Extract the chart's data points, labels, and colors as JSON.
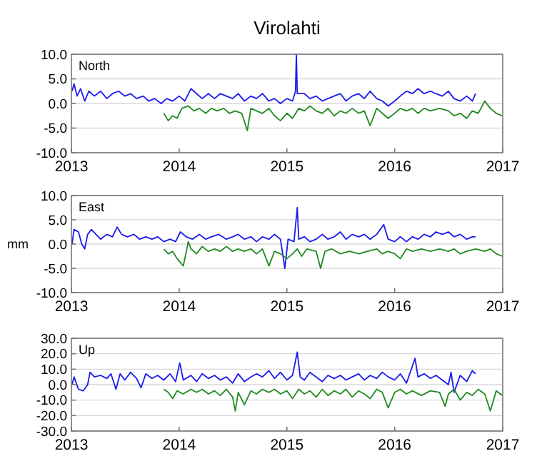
{
  "chart_data": [
    {
      "type": "line",
      "title": "Virolahti",
      "annotations": [
        "North"
      ],
      "xlim": [
        "2013",
        "2017"
      ],
      "xticks": [
        "2013",
        "2014",
        "2015",
        "2016",
        "2017"
      ],
      "ylim": [
        -10,
        10
      ],
      "yticks": [
        {
          "value": -10,
          "label": "-10.0"
        },
        {
          "value": -5,
          "label": "-5.0"
        },
        {
          "value": 0,
          "label": "0.0"
        },
        {
          "value": 5,
          "label": "5.0"
        },
        {
          "value": 10,
          "label": "10.0"
        }
      ],
      "grid": "y",
      "series": [
        {
          "color": "#1a1aee",
          "x": [
            "2013-01-03",
            "2013-01-10",
            "2013-01-20",
            "2013-02-01",
            "2013-02-15",
            "2013-03-01",
            "2013-03-20",
            "2013-04-10",
            "2013-05-01",
            "2013-05-20",
            "2013-06-10",
            "2013-07-01",
            "2013-07-20",
            "2013-08-10",
            "2013-09-01",
            "2013-09-20",
            "2013-10-10",
            "2013-11-01",
            "2013-11-20",
            "2013-12-10",
            "2014-01-01",
            "2014-01-20",
            "2014-02-10",
            "2014-03-01",
            "2014-03-20",
            "2014-04-10",
            "2014-05-01",
            "2014-05-20",
            "2014-06-10",
            "2014-07-01",
            "2014-07-20",
            "2014-08-10",
            "2014-09-01",
            "2014-09-20",
            "2014-10-10",
            "2014-11-01",
            "2014-11-20",
            "2014-12-10",
            "2015-01-01",
            "2015-01-20",
            "2015-01-30",
            "2015-02-02",
            "2015-02-05",
            "2015-03-01",
            "2015-03-20",
            "2015-04-10",
            "2015-05-01",
            "2015-05-20",
            "2015-06-10",
            "2015-07-01",
            "2015-07-20",
            "2015-08-10",
            "2015-09-01",
            "2015-09-20",
            "2015-10-10",
            "2015-11-01",
            "2015-11-20",
            "2015-12-10",
            "2016-01-01",
            "2016-01-20",
            "2016-02-10",
            "2016-03-01",
            "2016-03-20",
            "2016-04-10",
            "2016-05-01",
            "2016-05-20",
            "2016-06-10",
            "2016-07-01",
            "2016-07-20",
            "2016-08-10",
            "2016-09-01",
            "2016-09-20",
            "2016-10-01"
          ],
          "values": [
            2.5,
            4.0,
            1.5,
            3.0,
            0.5,
            2.5,
            1.5,
            2.5,
            1.0,
            2.0,
            2.5,
            1.5,
            2.0,
            1.0,
            1.5,
            0.5,
            1.0,
            0.0,
            1.0,
            0.5,
            1.5,
            0.5,
            3.0,
            2.0,
            1.0,
            2.0,
            1.0,
            2.0,
            1.5,
            1.0,
            2.0,
            0.5,
            1.5,
            1.0,
            2.0,
            0.5,
            1.0,
            0.0,
            1.0,
            0.5,
            2.5,
            10.0,
            2.0,
            2.0,
            1.0,
            1.5,
            0.5,
            1.0,
            1.5,
            2.0,
            0.5,
            1.5,
            2.0,
            1.0,
            2.5,
            1.0,
            0.5,
            -0.5,
            0.5,
            1.5,
            2.5,
            2.0,
            3.0,
            2.0,
            2.5,
            2.0,
            1.5,
            2.5,
            1.0,
            0.5,
            1.5,
            0.5,
            2.0
          ]
        },
        {
          "color": "#1f8a1f",
          "x": [
            "2013-11-10",
            "2013-11-25",
            "2013-12-10",
            "2013-12-25",
            "2014-01-10",
            "2014-02-01",
            "2014-02-20",
            "2014-03-10",
            "2014-04-01",
            "2014-04-20",
            "2014-05-10",
            "2014-06-01",
            "2014-06-20",
            "2014-07-10",
            "2014-08-01",
            "2014-08-20",
            "2014-09-01",
            "2014-09-20",
            "2014-10-10",
            "2014-11-01",
            "2014-11-20",
            "2014-12-10",
            "2015-01-01",
            "2015-01-20",
            "2015-02-10",
            "2015-03-01",
            "2015-03-20",
            "2015-04-10",
            "2015-05-01",
            "2015-05-20",
            "2015-06-10",
            "2015-07-01",
            "2015-07-20",
            "2015-08-10",
            "2015-09-01",
            "2015-09-20",
            "2015-10-10",
            "2015-11-01",
            "2015-11-20",
            "2015-12-10",
            "2016-01-01",
            "2016-01-20",
            "2016-02-10",
            "2016-03-01",
            "2016-03-20",
            "2016-04-10",
            "2016-05-01",
            "2016-06-01",
            "2016-07-01",
            "2016-07-20",
            "2016-08-10",
            "2016-09-01",
            "2016-09-20",
            "2016-10-10",
            "2016-11-01",
            "2016-11-20",
            "2016-12-10",
            "2016-12-31"
          ],
          "values": [
            -2.0,
            -3.5,
            -2.5,
            -3.0,
            -1.0,
            -0.5,
            -1.5,
            -1.0,
            -2.0,
            -1.0,
            -1.5,
            -1.0,
            -2.0,
            -1.5,
            -2.0,
            -5.5,
            -1.0,
            -1.5,
            -2.0,
            -1.0,
            -2.5,
            -3.5,
            -2.0,
            -3.0,
            -1.0,
            -1.5,
            -0.5,
            -1.5,
            -2.0,
            -1.0,
            -2.5,
            -1.5,
            -2.0,
            -1.0,
            -2.0,
            -1.5,
            -4.5,
            -1.0,
            -2.0,
            -3.0,
            -2.0,
            -1.0,
            -1.5,
            -1.0,
            -2.0,
            -1.0,
            -1.5,
            -1.0,
            -1.5,
            -2.5,
            -2.0,
            -3.0,
            -1.5,
            -2.0,
            0.5,
            -1.0,
            -2.0,
            -2.5
          ]
        }
      ]
    },
    {
      "type": "line",
      "annotations": [
        "East"
      ],
      "ylabel": "mm",
      "xlim": [
        "2013",
        "2017"
      ],
      "xticks": [
        "2013",
        "2014",
        "2015",
        "2016",
        "2017"
      ],
      "ylim": [
        -10,
        10
      ],
      "yticks": [
        {
          "value": -10,
          "label": "-10.0"
        },
        {
          "value": -5,
          "label": "-5.0"
        },
        {
          "value": 0,
          "label": "0.0"
        },
        {
          "value": 5,
          "label": "5.0"
        },
        {
          "value": 10,
          "label": "10.0"
        }
      ],
      "grid": "y",
      "series": [
        {
          "color": "#1a1aee",
          "x": [
            "2013-01-03",
            "2013-01-10",
            "2013-01-25",
            "2013-02-05",
            "2013-02-15",
            "2013-02-25",
            "2013-03-10",
            "2013-03-25",
            "2013-04-10",
            "2013-05-01",
            "2013-05-20",
            "2013-06-05",
            "2013-06-20",
            "2013-07-10",
            "2013-08-01",
            "2013-08-20",
            "2013-09-10",
            "2013-10-01",
            "2013-10-20",
            "2013-11-10",
            "2013-12-01",
            "2013-12-20",
            "2014-01-05",
            "2014-01-25",
            "2014-02-15",
            "2014-03-10",
            "2014-04-01",
            "2014-04-20",
            "2014-05-15",
            "2014-06-10",
            "2014-07-01",
            "2014-07-20",
            "2014-08-10",
            "2014-09-01",
            "2014-09-20",
            "2014-10-10",
            "2014-11-01",
            "2014-11-20",
            "2014-12-10",
            "2014-12-25",
            "2015-01-05",
            "2015-01-25",
            "2015-02-05",
            "2015-02-10",
            "2015-03-01",
            "2015-03-20",
            "2015-04-10",
            "2015-05-01",
            "2015-05-20",
            "2015-06-10",
            "2015-07-01",
            "2015-07-20",
            "2015-08-10",
            "2015-09-01",
            "2015-09-20",
            "2015-10-10",
            "2015-11-01",
            "2015-11-25",
            "2015-12-10",
            "2016-01-01",
            "2016-01-20",
            "2016-02-10",
            "2016-03-01",
            "2016-03-20",
            "2016-04-10",
            "2016-05-01",
            "2016-05-20",
            "2016-06-10",
            "2016-07-01",
            "2016-07-20",
            "2016-08-10",
            "2016-09-01",
            "2016-09-20",
            "2016-10-01"
          ],
          "values": [
            0.0,
            3.0,
            2.5,
            0.0,
            -1.0,
            2.0,
            3.0,
            2.0,
            1.0,
            2.0,
            1.5,
            3.5,
            2.0,
            1.5,
            2.0,
            1.0,
            1.5,
            1.0,
            1.5,
            0.5,
            1.0,
            0.5,
            2.5,
            1.5,
            1.0,
            2.0,
            1.0,
            1.5,
            2.0,
            1.0,
            1.5,
            2.0,
            1.0,
            1.5,
            0.5,
            1.5,
            1.0,
            2.0,
            1.0,
            -5.0,
            1.0,
            0.5,
            7.5,
            1.0,
            1.5,
            0.5,
            1.0,
            2.0,
            1.0,
            1.5,
            2.5,
            1.0,
            2.0,
            1.5,
            2.0,
            1.0,
            2.0,
            4.0,
            1.0,
            0.5,
            1.5,
            0.5,
            1.5,
            1.0,
            2.0,
            1.5,
            2.5,
            2.0,
            2.5,
            1.5,
            2.0,
            1.0,
            1.5,
            1.5
          ]
        },
        {
          "color": "#1f8a1f",
          "x": [
            "2013-11-10",
            "2013-11-25",
            "2013-12-10",
            "2013-12-25",
            "2014-01-15",
            "2014-02-01",
            "2014-02-10",
            "2014-03-01",
            "2014-03-20",
            "2014-04-10",
            "2014-05-01",
            "2014-05-20",
            "2014-06-10",
            "2014-07-01",
            "2014-07-20",
            "2014-08-10",
            "2014-09-01",
            "2014-09-20",
            "2014-10-10",
            "2014-11-01",
            "2014-11-20",
            "2014-12-10",
            "2015-01-01",
            "2015-01-20",
            "2015-02-05",
            "2015-02-20",
            "2015-03-10",
            "2015-04-10",
            "2015-04-25",
            "2015-05-10",
            "2015-06-01",
            "2015-07-01",
            "2015-08-01",
            "2015-09-01",
            "2015-10-01",
            "2015-11-01",
            "2015-11-20",
            "2015-12-10",
            "2016-01-01",
            "2016-01-20",
            "2016-02-10",
            "2016-03-01",
            "2016-04-01",
            "2016-05-01",
            "2016-06-01",
            "2016-07-01",
            "2016-07-20",
            "2016-08-10",
            "2016-09-01",
            "2016-10-01",
            "2016-11-01",
            "2016-11-20",
            "2016-12-10",
            "2016-12-31"
          ],
          "values": [
            -1.0,
            -2.0,
            -1.5,
            -3.0,
            -4.5,
            0.5,
            -1.0,
            -2.0,
            -0.5,
            -1.5,
            -1.0,
            -1.5,
            -0.5,
            -1.5,
            -1.0,
            -1.5,
            -1.0,
            -2.0,
            -1.0,
            -4.5,
            -1.5,
            -2.0,
            -3.0,
            -2.0,
            -1.0,
            -2.5,
            -1.0,
            -1.5,
            -5.0,
            -1.5,
            -1.0,
            -2.0,
            -1.5,
            -2.0,
            -1.5,
            -1.0,
            -2.0,
            -1.5,
            -2.0,
            -3.0,
            -1.0,
            -1.5,
            -1.0,
            -1.5,
            -1.0,
            -1.5,
            -1.0,
            -2.0,
            -1.5,
            -1.0,
            -1.5,
            -1.0,
            -2.0,
            -2.5
          ]
        }
      ]
    },
    {
      "type": "line",
      "annotations": [
        "Up"
      ],
      "xlim": [
        "2013",
        "2017"
      ],
      "xticks": [
        "2013",
        "2014",
        "2015",
        "2016",
        "2017"
      ],
      "ylim": [
        -30,
        30
      ],
      "yticks": [
        {
          "value": -30,
          "label": "-30.0"
        },
        {
          "value": -20,
          "label": "-20.0"
        },
        {
          "value": -10,
          "label": "-10.0"
        },
        {
          "value": 0,
          "label": "0.0"
        },
        {
          "value": 10,
          "label": "10.0"
        },
        {
          "value": 20,
          "label": "20.0"
        },
        {
          "value": 30,
          "label": "30.0"
        }
      ],
      "grid": "y",
      "series": [
        {
          "color": "#1a1aee",
          "x": [
            "2013-01-03",
            "2013-01-10",
            "2013-01-25",
            "2013-02-10",
            "2013-02-25",
            "2013-03-05",
            "2013-03-20",
            "2013-04-10",
            "2013-05-01",
            "2013-05-15",
            "2013-06-01",
            "2013-06-15",
            "2013-07-01",
            "2013-07-20",
            "2013-08-10",
            "2013-08-25",
            "2013-09-10",
            "2013-10-01",
            "2013-10-20",
            "2013-11-10",
            "2013-12-01",
            "2013-12-20",
            "2014-01-03",
            "2014-01-15",
            "2014-02-10",
            "2014-03-01",
            "2014-03-20",
            "2014-04-10",
            "2014-05-01",
            "2014-05-20",
            "2014-06-10",
            "2014-07-01",
            "2014-07-20",
            "2014-08-10",
            "2014-09-01",
            "2014-09-20",
            "2014-10-10",
            "2014-11-01",
            "2014-11-20",
            "2014-12-10",
            "2015-01-01",
            "2015-01-20",
            "2015-02-05",
            "2015-02-15",
            "2015-03-01",
            "2015-03-20",
            "2015-04-10",
            "2015-05-01",
            "2015-05-20",
            "2015-06-10",
            "2015-07-01",
            "2015-07-20",
            "2015-08-10",
            "2015-09-01",
            "2015-09-20",
            "2015-10-10",
            "2015-11-01",
            "2015-11-20",
            "2015-12-10",
            "2016-01-01",
            "2016-01-20",
            "2016-02-10",
            "2016-03-01",
            "2016-03-10",
            "2016-03-20",
            "2016-04-10",
            "2016-05-01",
            "2016-05-20",
            "2016-06-10",
            "2016-07-01",
            "2016-07-10",
            "2016-07-20",
            "2016-08-10",
            "2016-09-01",
            "2016-09-20",
            "2016-10-01"
          ],
          "values": [
            0,
            5,
            -3,
            -4,
            0,
            8,
            5,
            6,
            4,
            7,
            -3,
            7,
            3,
            8,
            4,
            -2,
            7,
            4,
            6,
            3,
            7,
            2,
            14,
            3,
            6,
            2,
            7,
            4,
            6,
            3,
            5,
            1,
            7,
            2,
            5,
            7,
            5,
            9,
            4,
            8,
            3,
            6,
            21,
            5,
            3,
            8,
            5,
            2,
            6,
            4,
            6,
            3,
            5,
            7,
            3,
            6,
            4,
            8,
            5,
            3,
            7,
            1,
            12,
            17,
            5,
            7,
            4,
            6,
            3,
            0,
            8,
            -5,
            6,
            2,
            9,
            7
          ]
        },
        {
          "color": "#1f8a1f",
          "x": [
            "2013-11-10",
            "2013-11-25",
            "2013-12-10",
            "2013-12-25",
            "2014-01-15",
            "2014-02-10",
            "2014-03-01",
            "2014-03-20",
            "2014-04-10",
            "2014-05-01",
            "2014-05-20",
            "2014-06-10",
            "2014-07-01",
            "2014-07-10",
            "2014-07-20",
            "2014-08-10",
            "2014-09-01",
            "2014-09-20",
            "2014-10-10",
            "2014-11-01",
            "2014-11-20",
            "2014-12-10",
            "2015-01-01",
            "2015-01-20",
            "2015-02-10",
            "2015-03-01",
            "2015-03-20",
            "2015-04-10",
            "2015-05-01",
            "2015-05-20",
            "2015-06-10",
            "2015-07-01",
            "2015-07-20",
            "2015-08-10",
            "2015-09-01",
            "2015-09-20",
            "2015-10-10",
            "2015-11-01",
            "2015-11-20",
            "2015-12-10",
            "2016-01-01",
            "2016-01-20",
            "2016-02-10",
            "2016-03-01",
            "2016-04-01",
            "2016-05-01",
            "2016-06-01",
            "2016-06-20",
            "2016-07-01",
            "2016-07-20",
            "2016-08-10",
            "2016-09-01",
            "2016-09-20",
            "2016-10-10",
            "2016-11-01",
            "2016-11-20",
            "2016-12-10",
            "2016-12-31"
          ],
          "values": [
            -3,
            -5,
            -9,
            -4,
            -6,
            -3,
            -5,
            -3,
            -6,
            -4,
            -7,
            -3,
            -8,
            -17,
            -5,
            -13,
            -4,
            -6,
            -3,
            -5,
            -3,
            -6,
            -4,
            -9,
            -3,
            -6,
            -4,
            -8,
            -3,
            -7,
            -4,
            -6,
            -3,
            -8,
            -4,
            -6,
            -9,
            -3,
            -5,
            -15,
            -5,
            -3,
            -6,
            -4,
            -7,
            -4,
            -5,
            -14,
            -6,
            -3,
            -10,
            -5,
            -7,
            -3,
            -6,
            -17,
            -4,
            -7
          ]
        }
      ]
    }
  ]
}
